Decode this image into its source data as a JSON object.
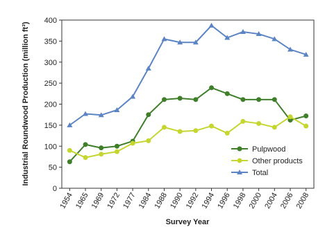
{
  "chart_data": {
    "type": "line",
    "xlabel": "Survey Year",
    "ylabel": "Industrial Roundwood Production (million ft³)",
    "categories": [
      "1954",
      "1965",
      "1969",
      "1972",
      "1977",
      "1984",
      "1988",
      "1990",
      "1992",
      "1994",
      "1996",
      "1998",
      "2000",
      "2004",
      "2006",
      "2008"
    ],
    "ylim": [
      0,
      400
    ],
    "yticks": [
      0,
      50,
      100,
      150,
      200,
      250,
      300,
      350,
      400
    ],
    "grid": false,
    "legend_position": "bottom-right",
    "series": [
      {
        "name": "Pulpwood",
        "color": "#3f7f2a",
        "marker": "circle",
        "values": [
          63,
          104,
          96,
          100,
          112,
          175,
          211,
          214,
          211,
          239,
          225,
          211,
          211,
          211,
          162,
          172
        ]
      },
      {
        "name": "Other products",
        "color": "#c6d630",
        "marker": "circle",
        "values": [
          90,
          73,
          81,
          87,
          107,
          113,
          145,
          135,
          137,
          148,
          131,
          159,
          154,
          145,
          170,
          148
        ]
      },
      {
        "name": "Total",
        "color": "#5b84c4",
        "marker": "triangle",
        "values": [
          150,
          177,
          174,
          186,
          218,
          285,
          355,
          347,
          347,
          387,
          358,
          372,
          367,
          355,
          330,
          318
        ]
      }
    ]
  }
}
